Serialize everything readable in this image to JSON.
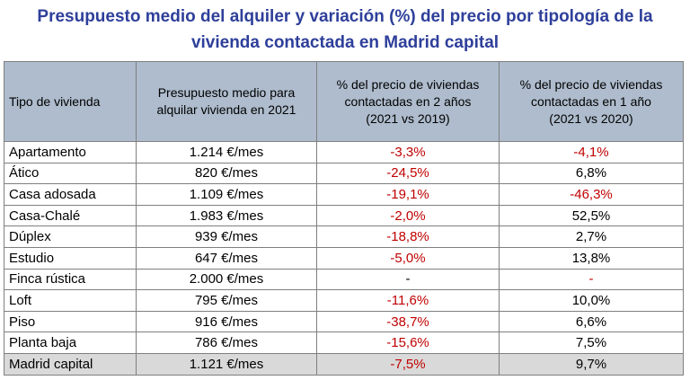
{
  "title_line1": "Presupuesto medio del alquiler y variación (%) del precio por tipología de la",
  "title_line2": "vivienda contactada en Madrid capital",
  "headers": {
    "col1": "Tipo de vivienda",
    "col2_l1": "Presupuesto medio para",
    "col2_l2": "alquilar vivienda en 2021",
    "col3_l1": "% del precio de viviendas",
    "col3_l2": "contactadas en 2 años",
    "col3_l3": "(2021 vs 2019)",
    "col4_l1": "% del precio de viviendas",
    "col4_l2": "contactadas en 1 año",
    "col4_l3": "(2021 vs 2020)"
  },
  "rows": [
    {
      "type": "Apartamento",
      "budget": "1.214 €/mes",
      "var2": "-3,3%",
      "var1": "-4,1%"
    },
    {
      "type": "Ático",
      "budget": "820 €/mes",
      "var2": "-24,5%",
      "var1": "6,8%"
    },
    {
      "type": "Casa adosada",
      "budget": "1.109 €/mes",
      "var2": "-19,1%",
      "var1": "-46,3%"
    },
    {
      "type": "Casa-Chalé",
      "budget": "1.983 €/mes",
      "var2": "-2,0%",
      "var1": "52,5%"
    },
    {
      "type": "Dúplex",
      "budget": "939 €/mes",
      "var2": "-18,8%",
      "var1": "2,7%"
    },
    {
      "type": "Estudio",
      "budget": "647 €/mes",
      "var2": "-5,0%",
      "var1": "13,8%"
    },
    {
      "type": "Finca rústica",
      "budget": "2.000 €/mes",
      "var2": "-",
      "var1": "-"
    },
    {
      "type": "Loft",
      "budget": "795 €/mes",
      "var2": "-11,6%",
      "var1": "10,0%"
    },
    {
      "type": "Piso",
      "budget": "916 €/mes",
      "var2": "-38,7%",
      "var1": "6,6%"
    },
    {
      "type": "Planta baja",
      "budget": "786 €/mes",
      "var2": "-15,6%",
      "var1": "7,5%"
    },
    {
      "type": "Madrid capital",
      "budget": "1.121 €/mes",
      "var2": "-7,5%",
      "var1": "9,7%"
    }
  ],
  "colors": {
    "title": "#2e3f9a",
    "header_bg": "#aebccd",
    "negative": "#c00000",
    "total_row_bg": "#d9d9d9"
  }
}
